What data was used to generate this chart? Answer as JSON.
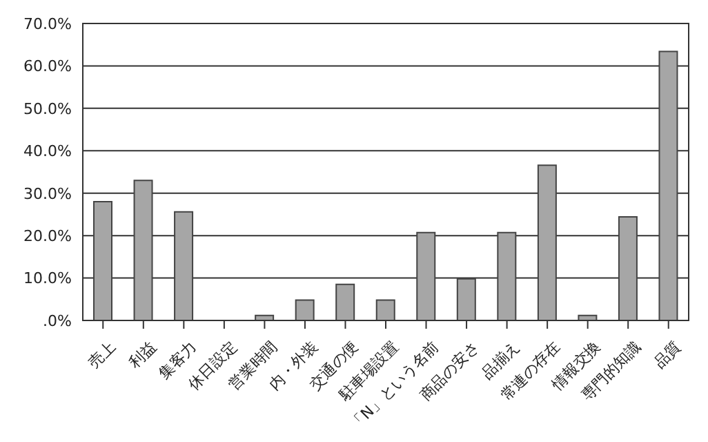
{
  "chart_data": {
    "type": "bar",
    "categories": [
      "売上",
      "利益",
      "集客力",
      "休日設定",
      "営業時間",
      "内・外装",
      "交通の便",
      "駐車場設置",
      "「N」という名前",
      "商品の安さ",
      "品揃え",
      "常連の存在",
      "情報交換",
      "専門的知識",
      "品質"
    ],
    "values": [
      28.0,
      33.0,
      25.6,
      0,
      1.2,
      4.8,
      8.5,
      4.8,
      20.7,
      9.8,
      20.7,
      36.6,
      1.2,
      24.4,
      63.4
    ],
    "color": "#a6a6a6",
    "ylim": [
      0,
      70
    ],
    "yticks": [
      {
        "value": 0,
        "label": ".0%"
      },
      {
        "value": 10,
        "label": "10.0%"
      },
      {
        "value": 20,
        "label": "20.0%"
      },
      {
        "value": 30,
        "label": "30.0%"
      },
      {
        "value": 40,
        "label": "40.0%"
      },
      {
        "value": 50,
        "label": "50.0%"
      },
      {
        "value": 60,
        "label": "60.0%"
      },
      {
        "value": 70,
        "label": "70.0%"
      }
    ],
    "grid": "y",
    "legend": false
  }
}
